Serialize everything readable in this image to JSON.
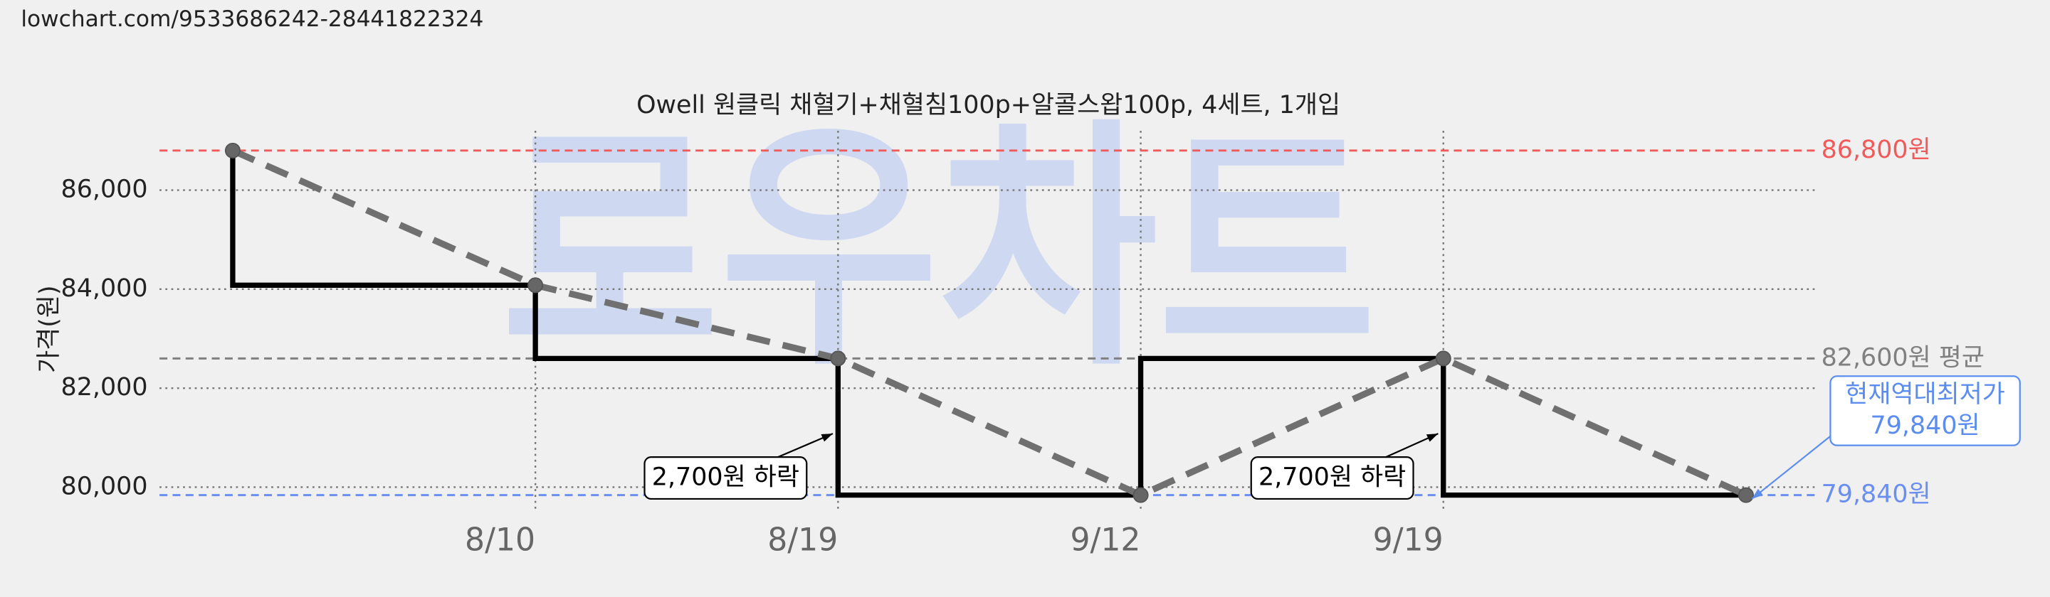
{
  "url": "lowchart.com/9533686242-28441822324",
  "chart_data": {
    "type": "line",
    "title": "Owell 원클릭 채혈기+채혈침100p+알콜스왑100p, 4세트, 1개입",
    "ylabel": "가격(원)",
    "watermark": "로우차트",
    "categories": [
      null,
      "8/10",
      "8/19",
      "9/12",
      "9/19",
      null
    ],
    "series": [
      {
        "color": "#000000",
        "drawstyle": "steps-pre",
        "linestyle": "solid",
        "marker": false,
        "values": [
          86800,
          84080,
          82600,
          79840,
          82600,
          79840
        ]
      },
      {
        "color": "#707070",
        "drawstyle": "default",
        "linestyle": "dashed",
        "marker": true,
        "values": [
          86800,
          84080,
          82600,
          79840,
          82600,
          79840
        ]
      }
    ],
    "ylim": [
      79500,
      87200
    ],
    "yticks": [
      {
        "value": 80000,
        "label": "80,000"
      },
      {
        "value": 82000,
        "label": "82,000"
      },
      {
        "value": 84000,
        "label": "84,000"
      },
      {
        "value": 86000,
        "label": "86,000"
      }
    ],
    "grid": true,
    "hlines": [
      {
        "value": 86800,
        "label": "86,800원",
        "color": "#f05a5a"
      },
      {
        "value": 82600,
        "label": "82,600원 평균",
        "color": "#808080"
      },
      {
        "value": 79840,
        "label": "79,840원",
        "color": "#6a8ff0"
      }
    ],
    "annotations": [
      {
        "text": [
          "2,700원 하락"
        ],
        "color": "#000000"
      },
      {
        "text": [
          "2,700원 하락"
        ],
        "color": "#000000"
      },
      {
        "text": [
          "현재역대최저가",
          "79,840원"
        ],
        "color": "#5b8def"
      }
    ]
  }
}
